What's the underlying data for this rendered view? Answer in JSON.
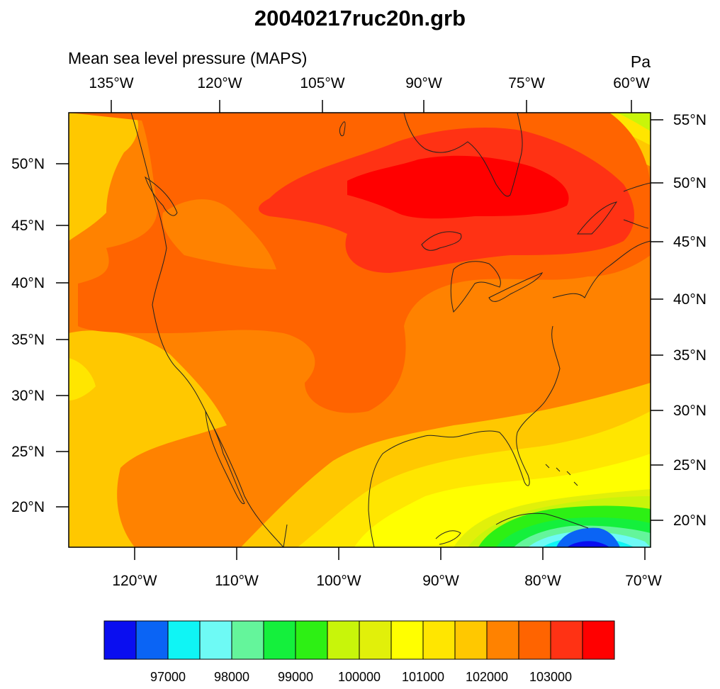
{
  "title": "20040217ruc20n.grb",
  "left_label": "Mean sea level pressure (MAPS)",
  "right_label": "Pa",
  "top_lon_labels": [
    "135°W",
    "120°W",
    "105°W",
    "90°W",
    "75°W",
    "60°W"
  ],
  "bottom_lon_labels": [
    "120°W",
    "110°W",
    "100°W",
    "90°W",
    "80°W",
    "70°W"
  ],
  "left_lat_labels": [
    "50°N",
    "45°N",
    "40°N",
    "35°N",
    "30°N",
    "25°N",
    "20°N"
  ],
  "right_lat_labels": [
    "55°N",
    "50°N",
    "45°N",
    "40°N",
    "35°N",
    "30°N",
    "25°N",
    "20°N"
  ],
  "colorbar": {
    "colors": [
      "#0a0ef0",
      "#0a64f5",
      "#0ff5f5",
      "#6efaf5",
      "#64f59b",
      "#14f03c",
      "#2df014",
      "#c8f50a",
      "#e1f00a",
      "#ffff00",
      "#ffe600",
      "#ffc800",
      "#ff8200",
      "#ff6400",
      "#ff3214",
      "#ff0000"
    ],
    "labels": [
      "97000",
      "98000",
      "99000",
      "100000",
      "101000",
      "102000",
      "103000"
    ]
  },
  "fill_colors": {
    "level_101000": "#ffc800",
    "level_102000": "#ff8200",
    "level_102500": "#ff6400",
    "level_103000": "#ff3214",
    "level_103500": "#ff0000",
    "level_100500": "#ffe600",
    "level_100000": "#ffff00",
    "level_99500": "#e1f00a",
    "level_99000": "#c8f50a",
    "level_98500": "#2df014",
    "level_98000": "#14f03c",
    "level_97500": "#64f59b",
    "level_97000": "#6efaf5",
    "level_96500": "#0ff5f5",
    "level_96000": "#0a64f5",
    "level_95500": "#0a0ef0"
  }
}
